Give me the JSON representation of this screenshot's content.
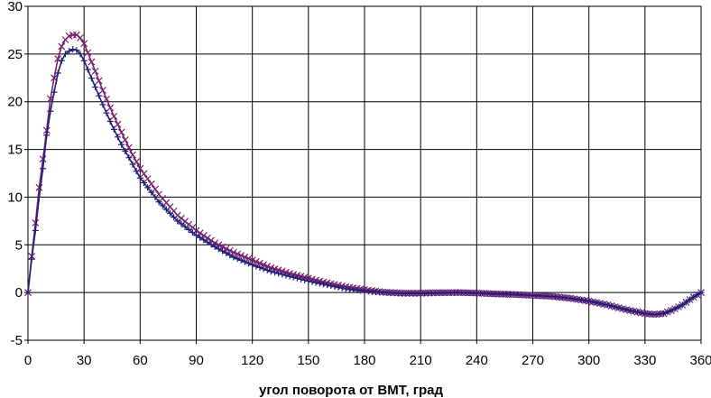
{
  "chart_data": {
    "type": "line",
    "xlabel": "угол поворота от ВМТ, град",
    "ylabel": "",
    "title": "",
    "xlim": [
      0,
      360
    ],
    "ylim": [
      -5,
      30
    ],
    "x_ticks": [
      0,
      30,
      60,
      90,
      120,
      150,
      180,
      210,
      240,
      270,
      300,
      330,
      360
    ],
    "y_ticks": [
      -5,
      0,
      5,
      10,
      15,
      20,
      25,
      30
    ],
    "grid": true,
    "legend": "none",
    "colors": {
      "background": "#ffffff",
      "grid": "#000000",
      "series_1": "#1f1f7a",
      "series_2": "#7a1f6e"
    },
    "series": [
      {
        "marker": "plus",
        "x": [
          0,
          2,
          4,
          6,
          8,
          10,
          12,
          14,
          16,
          18,
          20,
          22,
          24,
          26,
          28,
          30,
          35,
          40,
          45,
          50,
          55,
          60,
          70,
          80,
          90,
          100,
          110,
          120,
          130,
          140,
          150,
          160,
          170,
          180,
          190,
          200,
          210,
          220,
          230,
          240,
          250,
          260,
          270,
          280,
          290,
          300,
          310,
          320,
          330,
          335,
          340,
          345,
          350,
          355,
          360
        ],
        "y": [
          0,
          3.5,
          6.5,
          10,
          13,
          16.5,
          19,
          21,
          23,
          24.3,
          25,
          25.3,
          25.5,
          25.4,
          25,
          24.3,
          22,
          19.7,
          17.5,
          15.5,
          13.8,
          12,
          9.5,
          7.5,
          6,
          4.8,
          3.7,
          2.9,
          2.2,
          1.7,
          1.2,
          0.8,
          0.4,
          0.15,
          0,
          -0.1,
          -0.1,
          -0.05,
          0,
          -0.05,
          -0.15,
          -0.2,
          -0.3,
          -0.4,
          -0.6,
          -0.9,
          -1.3,
          -1.8,
          -2.2,
          -2.3,
          -2.2,
          -1.8,
          -1.3,
          -0.6,
          0
        ]
      },
      {
        "marker": "x",
        "x": [
          0,
          2,
          4,
          6,
          8,
          10,
          12,
          14,
          16,
          18,
          20,
          22,
          24,
          26,
          28,
          30,
          35,
          40,
          45,
          50,
          55,
          60,
          70,
          80,
          90,
          100,
          110,
          120,
          130,
          140,
          150,
          160,
          170,
          180,
          190,
          200,
          210,
          220,
          230,
          240,
          250,
          260,
          270,
          280,
          290,
          300,
          310,
          320,
          330,
          335,
          340,
          345,
          350,
          355,
          360
        ],
        "y": [
          0,
          3.8,
          7.3,
          11,
          14,
          17,
          20.3,
          22.5,
          24.5,
          25.8,
          26.5,
          26.9,
          27,
          27,
          26.7,
          26.1,
          23.7,
          21.2,
          18.9,
          16.8,
          14.8,
          13,
          10.3,
          8.1,
          6.5,
          5.2,
          4.2,
          3.4,
          2.6,
          2,
          1.5,
          1,
          0.6,
          0.3,
          0.05,
          -0.05,
          -0.05,
          0,
          0,
          -0.05,
          -0.15,
          -0.2,
          -0.3,
          -0.4,
          -0.6,
          -0.9,
          -1.3,
          -1.8,
          -2.2,
          -2.3,
          -2.2,
          -1.8,
          -1.3,
          -0.6,
          0
        ]
      }
    ]
  }
}
